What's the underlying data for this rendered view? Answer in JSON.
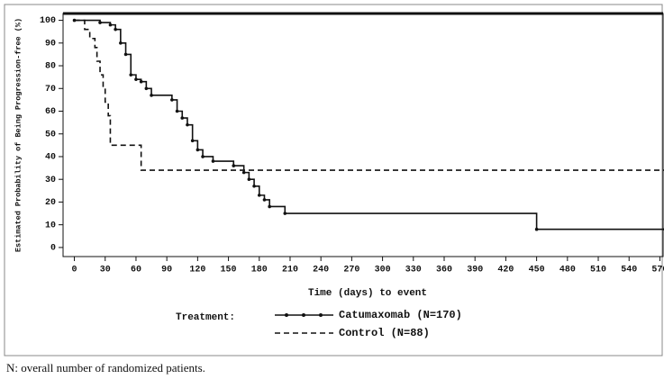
{
  "chart_data": {
    "type": "line",
    "step": "post",
    "y_label": "Estimated Probability of Being Progression-free (%)",
    "x_label": "Time (days) to event",
    "legend_title": "Treatment:",
    "caption": "N: overall number of randomized patients.",
    "xlim": [
      -11,
      574
    ],
    "ylim": [
      -4,
      103
    ],
    "xticks": [
      0,
      30,
      60,
      90,
      120,
      150,
      180,
      210,
      240,
      270,
      300,
      330,
      360,
      390,
      420,
      450,
      480,
      510,
      540,
      570
    ],
    "yticks": [
      0,
      10,
      20,
      30,
      40,
      50,
      60,
      70,
      80,
      90,
      100
    ],
    "series": [
      {
        "name": "Catumaxomab (N=170)",
        "color": "#111111",
        "dash": "solid",
        "marker": true,
        "x": [
          0,
          25,
          35,
          40,
          45,
          50,
          55,
          60,
          65,
          70,
          75,
          95,
          100,
          105,
          110,
          115,
          120,
          125,
          135,
          155,
          165,
          170,
          175,
          180,
          185,
          190,
          205,
          450,
          575
        ],
        "values": [
          100,
          99,
          98,
          96,
          90,
          85,
          76,
          74,
          73,
          70,
          67,
          65,
          60,
          57,
          54,
          47,
          43,
          40,
          38,
          36,
          33,
          30,
          27,
          23,
          21,
          18,
          15,
          8,
          8
        ]
      },
      {
        "name": "Control (N=88)",
        "color": "#111111",
        "dash": "dashed",
        "marker": false,
        "x": [
          0,
          10,
          15,
          20,
          22,
          25,
          28,
          30,
          33,
          35,
          65,
          575
        ],
        "values": [
          100,
          96,
          92,
          88,
          82,
          76,
          70,
          64,
          58,
          45,
          34,
          34
        ]
      }
    ]
  }
}
